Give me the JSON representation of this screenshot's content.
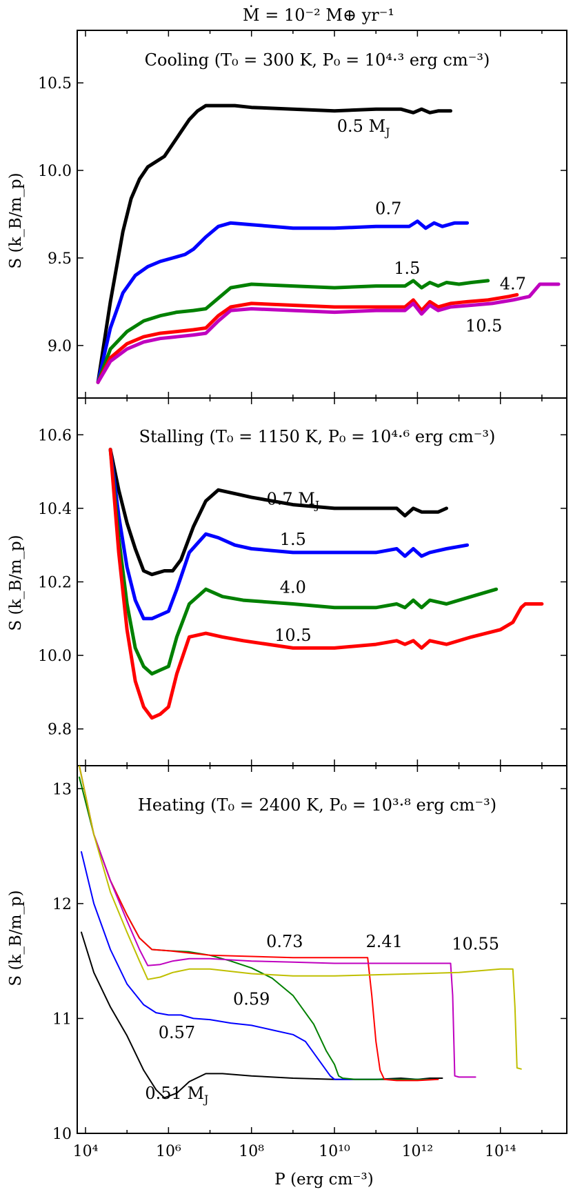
{
  "figure_title": "Ṁ = 10⁻² M⊕ yr⁻¹",
  "colors": {
    "black": "#000000",
    "blue": "#0000ff",
    "green": "#008000",
    "red": "#ff0000",
    "magenta": "#bf00bf",
    "olive": "#bfbf00"
  },
  "x_axis": {
    "label": "P (erg cm⁻³)",
    "scale": "log",
    "range_log10": [
      3.8,
      15.6
    ],
    "ticks": [
      {
        "value": 4,
        "label": "10⁴"
      },
      {
        "value": 6,
        "label": "10⁶"
      },
      {
        "value": 8,
        "label": "10⁸"
      },
      {
        "value": 10,
        "label": "10¹⁰"
      },
      {
        "value": 12,
        "label": "10¹²"
      },
      {
        "value": 14,
        "label": "10¹⁴"
      }
    ]
  },
  "chart_data": [
    {
      "type": "line",
      "panel": "top",
      "title": "Cooling (T₀ = 300 K, P₀ = 10⁴·³ erg cm⁻³)",
      "ylabel": "S (k_B/m_p)",
      "ylim": [
        8.7,
        10.8
      ],
      "yticks": [
        {
          "value": 9.0,
          "label": "9.0"
        },
        {
          "value": 9.5,
          "label": "9.5"
        },
        {
          "value": 10.0,
          "label": "10.0"
        },
        {
          "value": 10.5,
          "label": "10.5"
        }
      ],
      "series": [
        {
          "name": "0.5 M_J",
          "label": "0.5 M",
          "label_sub": "J",
          "color": "#000000",
          "width": 5,
          "label_pos": [
            10.7,
            10.22
          ],
          "x": [
            4.3,
            4.6,
            4.9,
            5.1,
            5.3,
            5.5,
            5.7,
            5.9,
            6.1,
            6.3,
            6.5,
            6.7,
            6.9,
            7.2,
            7.6,
            8.0,
            9.0,
            10.0,
            11.0,
            11.6,
            11.9,
            12.1,
            12.3,
            12.5,
            12.8
          ],
          "y": [
            8.79,
            9.25,
            9.65,
            9.84,
            9.95,
            10.02,
            10.05,
            10.08,
            10.15,
            10.22,
            10.29,
            10.34,
            10.37,
            10.37,
            10.37,
            10.36,
            10.35,
            10.34,
            10.35,
            10.35,
            10.33,
            10.35,
            10.33,
            10.34,
            10.34
          ]
        },
        {
          "name": "0.7",
          "label": "0.7",
          "color": "#0000ff",
          "width": 5,
          "label_pos": [
            11.3,
            9.75
          ],
          "x": [
            4.3,
            4.6,
            4.9,
            5.2,
            5.5,
            5.8,
            6.1,
            6.4,
            6.6,
            6.9,
            7.2,
            7.5,
            8.0,
            9.0,
            10.0,
            11.0,
            11.8,
            12.0,
            12.2,
            12.4,
            12.6,
            12.9,
            13.2
          ],
          "y": [
            8.79,
            9.1,
            9.3,
            9.4,
            9.45,
            9.48,
            9.5,
            9.52,
            9.55,
            9.62,
            9.68,
            9.7,
            9.69,
            9.67,
            9.67,
            9.68,
            9.68,
            9.71,
            9.67,
            9.7,
            9.68,
            9.7,
            9.7
          ]
        },
        {
          "name": "1.5",
          "label": "1.5",
          "color": "#008000",
          "width": 5,
          "label_pos": [
            11.75,
            9.41
          ],
          "x": [
            4.3,
            4.6,
            5.0,
            5.4,
            5.8,
            6.2,
            6.6,
            6.9,
            7.2,
            7.5,
            8.0,
            9.0,
            10.0,
            11.0,
            11.7,
            11.9,
            12.1,
            12.3,
            12.5,
            12.7,
            13.0,
            13.3,
            13.7
          ],
          "y": [
            8.79,
            8.98,
            9.08,
            9.14,
            9.17,
            9.19,
            9.2,
            9.21,
            9.27,
            9.33,
            9.35,
            9.34,
            9.33,
            9.34,
            9.34,
            9.37,
            9.33,
            9.36,
            9.34,
            9.36,
            9.35,
            9.36,
            9.37
          ]
        },
        {
          "name": "4.7",
          "label": "4.7",
          "color": "#ff0000",
          "width": 5,
          "label_pos": [
            14.3,
            9.32
          ],
          "x": [
            4.3,
            4.6,
            5.0,
            5.4,
            5.8,
            6.2,
            6.6,
            6.9,
            7.2,
            7.5,
            8.0,
            9.0,
            10.0,
            11.0,
            11.7,
            11.9,
            12.1,
            12.3,
            12.5,
            12.8,
            13.2,
            13.7,
            14.2,
            14.4
          ],
          "y": [
            8.79,
            8.93,
            9.01,
            9.05,
            9.07,
            9.08,
            9.09,
            9.1,
            9.17,
            9.22,
            9.24,
            9.23,
            9.22,
            9.22,
            9.22,
            9.26,
            9.2,
            9.25,
            9.22,
            9.24,
            9.25,
            9.26,
            9.28,
            9.29
          ]
        },
        {
          "name": "10.5",
          "label": "10.5",
          "color": "#bf00bf",
          "width": 5,
          "label_pos": [
            13.6,
            9.08
          ],
          "x": [
            4.3,
            4.6,
            5.0,
            5.4,
            5.8,
            6.2,
            6.6,
            6.9,
            7.2,
            7.5,
            8.0,
            9.0,
            10.0,
            11.0,
            11.7,
            11.9,
            12.1,
            12.3,
            12.5,
            12.8,
            13.3,
            13.8,
            14.3,
            14.7,
            14.95,
            15.05,
            15.4
          ],
          "y": [
            8.79,
            8.91,
            8.98,
            9.02,
            9.04,
            9.05,
            9.06,
            9.07,
            9.14,
            9.2,
            9.21,
            9.2,
            9.19,
            9.2,
            9.2,
            9.24,
            9.18,
            9.23,
            9.2,
            9.22,
            9.23,
            9.24,
            9.26,
            9.28,
            9.35,
            9.35,
            9.35
          ]
        }
      ]
    },
    {
      "type": "line",
      "panel": "middle",
      "title": "Stalling (T₀ = 1150 K, P₀ = 10⁴·⁶ erg cm⁻³)",
      "ylabel": "S (k_B/m_p)",
      "ylim": [
        9.7,
        10.7
      ],
      "yticks": [
        {
          "value": 9.8,
          "label": "9.8"
        },
        {
          "value": 10.0,
          "label": "10.0"
        },
        {
          "value": 10.2,
          "label": "10.2"
        },
        {
          "value": 10.4,
          "label": "10.4"
        },
        {
          "value": 10.6,
          "label": "10.6"
        }
      ],
      "series": [
        {
          "name": "0.7 M_J",
          "label": "0.7 M",
          "label_sub": "J",
          "color": "#000000",
          "width": 5,
          "label_pos": [
            9.0,
            10.41
          ],
          "x": [
            4.6,
            4.8,
            5.0,
            5.2,
            5.4,
            5.6,
            5.9,
            6.1,
            6.3,
            6.6,
            6.9,
            7.2,
            7.6,
            8.0,
            9.0,
            10.0,
            11.0,
            11.5,
            11.7,
            11.9,
            12.1,
            12.3,
            12.5,
            12.7
          ],
          "y": [
            10.56,
            10.45,
            10.36,
            10.29,
            10.23,
            10.22,
            10.23,
            10.23,
            10.26,
            10.35,
            10.42,
            10.45,
            10.44,
            10.43,
            10.41,
            10.4,
            10.4,
            10.4,
            10.38,
            10.4,
            10.39,
            10.39,
            10.39,
            10.4
          ]
        },
        {
          "name": "1.5",
          "label": "1.5",
          "color": "#0000ff",
          "width": 5,
          "label_pos": [
            9.0,
            10.3
          ],
          "x": [
            4.6,
            4.8,
            5.0,
            5.2,
            5.4,
            5.6,
            5.8,
            6.0,
            6.2,
            6.5,
            6.9,
            7.2,
            7.6,
            8.0,
            9.0,
            10.0,
            11.0,
            11.5,
            11.7,
            11.9,
            12.1,
            12.3,
            12.7,
            13.2
          ],
          "y": [
            10.56,
            10.38,
            10.24,
            10.15,
            10.1,
            10.1,
            10.11,
            10.12,
            10.18,
            10.28,
            10.33,
            10.32,
            10.3,
            10.29,
            10.28,
            10.28,
            10.28,
            10.29,
            10.27,
            10.29,
            10.27,
            10.28,
            10.29,
            10.3
          ]
        },
        {
          "name": "4.0",
          "label": "4.0",
          "color": "#008000",
          "width": 5,
          "label_pos": [
            9.0,
            10.17
          ],
          "x": [
            4.6,
            4.8,
            5.0,
            5.2,
            5.4,
            5.6,
            5.8,
            6.0,
            6.2,
            6.5,
            6.9,
            7.3,
            7.8,
            9.0,
            10.0,
            11.0,
            11.5,
            11.7,
            11.9,
            12.1,
            12.3,
            12.7,
            13.3,
            13.9
          ],
          "y": [
            10.56,
            10.32,
            10.14,
            10.02,
            9.97,
            9.95,
            9.96,
            9.97,
            10.05,
            10.14,
            10.18,
            10.16,
            10.15,
            10.14,
            10.13,
            10.13,
            10.14,
            10.13,
            10.15,
            10.13,
            10.15,
            10.14,
            10.16,
            10.18
          ]
        },
        {
          "name": "10.5",
          "label": "10.5",
          "color": "#ff0000",
          "width": 5,
          "label_pos": [
            9.0,
            10.04
          ],
          "x": [
            4.6,
            4.8,
            5.0,
            5.2,
            5.4,
            5.6,
            5.8,
            6.0,
            6.2,
            6.5,
            6.9,
            7.3,
            7.8,
            9.0,
            10.0,
            11.0,
            11.5,
            11.7,
            11.9,
            12.1,
            12.3,
            12.7,
            13.3,
            14.0,
            14.3,
            14.5,
            14.6,
            15.0
          ],
          "y": [
            10.56,
            10.28,
            10.07,
            9.93,
            9.86,
            9.83,
            9.84,
            9.86,
            9.95,
            10.05,
            10.06,
            10.05,
            10.04,
            10.02,
            10.02,
            10.03,
            10.04,
            10.03,
            10.04,
            10.02,
            10.04,
            10.03,
            10.05,
            10.07,
            10.09,
            10.13,
            10.14,
            10.14
          ]
        }
      ]
    },
    {
      "type": "line",
      "panel": "bottom",
      "title": "Heating (T₀ = 2400 K, P₀ = 10³·⁸ erg cm⁻³)",
      "ylabel": "S (k_B/m_p)",
      "ylim": [
        10.0,
        13.2
      ],
      "yticks": [
        {
          "value": 10,
          "label": "10"
        },
        {
          "value": 11,
          "label": "11"
        },
        {
          "value": 12,
          "label": "12"
        },
        {
          "value": 13,
          "label": "13"
        }
      ],
      "series": [
        {
          "name": "0.51 M_J",
          "label": "0.51 M",
          "label_sub": "J",
          "color": "#000000",
          "width": 2,
          "label_pos": [
            6.2,
            10.3
          ],
          "x": [
            3.9,
            4.2,
            4.6,
            5.0,
            5.4,
            5.7,
            5.9,
            6.2,
            6.5,
            6.9,
            7.3,
            8.0,
            9.0,
            10.0,
            11.0,
            11.6,
            12.0,
            12.3,
            12.6
          ],
          "y": [
            11.75,
            11.4,
            11.1,
            10.85,
            10.55,
            10.38,
            10.31,
            10.35,
            10.45,
            10.52,
            10.52,
            10.5,
            10.48,
            10.47,
            10.47,
            10.48,
            10.47,
            10.48,
            10.48
          ]
        },
        {
          "name": "0.57",
          "label": "0.57",
          "color": "#0000ff",
          "width": 2,
          "label_pos": [
            6.2,
            10.83
          ],
          "x": [
            3.9,
            4.2,
            4.6,
            5.0,
            5.4,
            5.7,
            6.0,
            6.3,
            6.6,
            7.0,
            7.5,
            8.0,
            8.5,
            9.0,
            9.3,
            9.5,
            9.7,
            9.9,
            10.0,
            10.5,
            11.0,
            11.5,
            12.0,
            12.4
          ],
          "y": [
            12.45,
            12.0,
            11.6,
            11.3,
            11.12,
            11.05,
            11.03,
            11.03,
            11.0,
            10.99,
            10.96,
            10.94,
            10.9,
            10.86,
            10.8,
            10.7,
            10.6,
            10.5,
            10.47,
            10.47,
            10.47,
            10.47,
            10.47,
            10.47
          ]
        },
        {
          "name": "0.59",
          "label": "0.59",
          "color": "#008000",
          "width": 2,
          "label_pos": [
            8.0,
            11.12
          ],
          "x": [
            3.85,
            4.2,
            4.6,
            5.0,
            5.3,
            5.6,
            6.0,
            6.5,
            7.0,
            7.5,
            8.0,
            8.5,
            9.0,
            9.5,
            9.8,
            10.0,
            10.1,
            10.2,
            10.5,
            11.0,
            11.5,
            12.0,
            12.4
          ],
          "y": [
            13.1,
            12.6,
            12.2,
            11.9,
            11.7,
            11.6,
            11.59,
            11.58,
            11.55,
            11.5,
            11.44,
            11.35,
            11.2,
            10.95,
            10.72,
            10.6,
            10.5,
            10.48,
            10.47,
            10.47,
            10.47,
            10.47,
            10.47
          ]
        },
        {
          "name": "0.73",
          "label": "0.73",
          "color": "#ff0000",
          "width": 2,
          "label_pos": [
            8.8,
            11.62
          ],
          "x": [
            3.85,
            4.2,
            4.6,
            5.0,
            5.3,
            5.6,
            6.0,
            6.5,
            7.0,
            8.0,
            9.0,
            10.0,
            10.5,
            10.8,
            10.9,
            11.0,
            11.1,
            11.2,
            11.5,
            12.0,
            12.5
          ],
          "y": [
            13.2,
            12.6,
            12.2,
            11.9,
            11.7,
            11.6,
            11.59,
            11.57,
            11.55,
            11.54,
            11.53,
            11.53,
            11.53,
            11.53,
            11.2,
            10.8,
            10.55,
            10.47,
            10.46,
            10.46,
            10.47
          ]
        },
        {
          "name": "2.41",
          "label": "2.41",
          "color": "#bf00bf",
          "width": 2,
          "label_pos": [
            11.2,
            11.62
          ],
          "x": [
            3.85,
            4.2,
            4.6,
            5.0,
            5.3,
            5.5,
            5.8,
            6.1,
            6.5,
            7.0,
            8.0,
            9.0,
            10.0,
            11.0,
            12.0,
            12.8,
            12.85,
            12.9,
            13.0,
            13.4
          ],
          "y": [
            13.2,
            12.6,
            12.2,
            11.85,
            11.6,
            11.46,
            11.47,
            11.5,
            11.52,
            11.52,
            11.5,
            11.49,
            11.48,
            11.48,
            11.48,
            11.48,
            11.2,
            10.5,
            10.49,
            10.49
          ]
        },
        {
          "name": "10.55",
          "label": "10.55",
          "color": "#bfbf00",
          "width": 2,
          "label_pos": [
            13.4,
            11.6
          ],
          "x": [
            3.85,
            4.2,
            4.6,
            5.0,
            5.3,
            5.5,
            5.8,
            6.1,
            6.5,
            7.0,
            8.0,
            9.0,
            10.0,
            11.0,
            12.0,
            13.0,
            14.0,
            14.3,
            14.35,
            14.4,
            14.5
          ],
          "y": [
            13.2,
            12.6,
            12.1,
            11.75,
            11.5,
            11.34,
            11.36,
            11.4,
            11.43,
            11.43,
            11.39,
            11.37,
            11.37,
            11.38,
            11.39,
            11.4,
            11.43,
            11.43,
            11.1,
            10.57,
            10.56
          ]
        }
      ]
    }
  ]
}
